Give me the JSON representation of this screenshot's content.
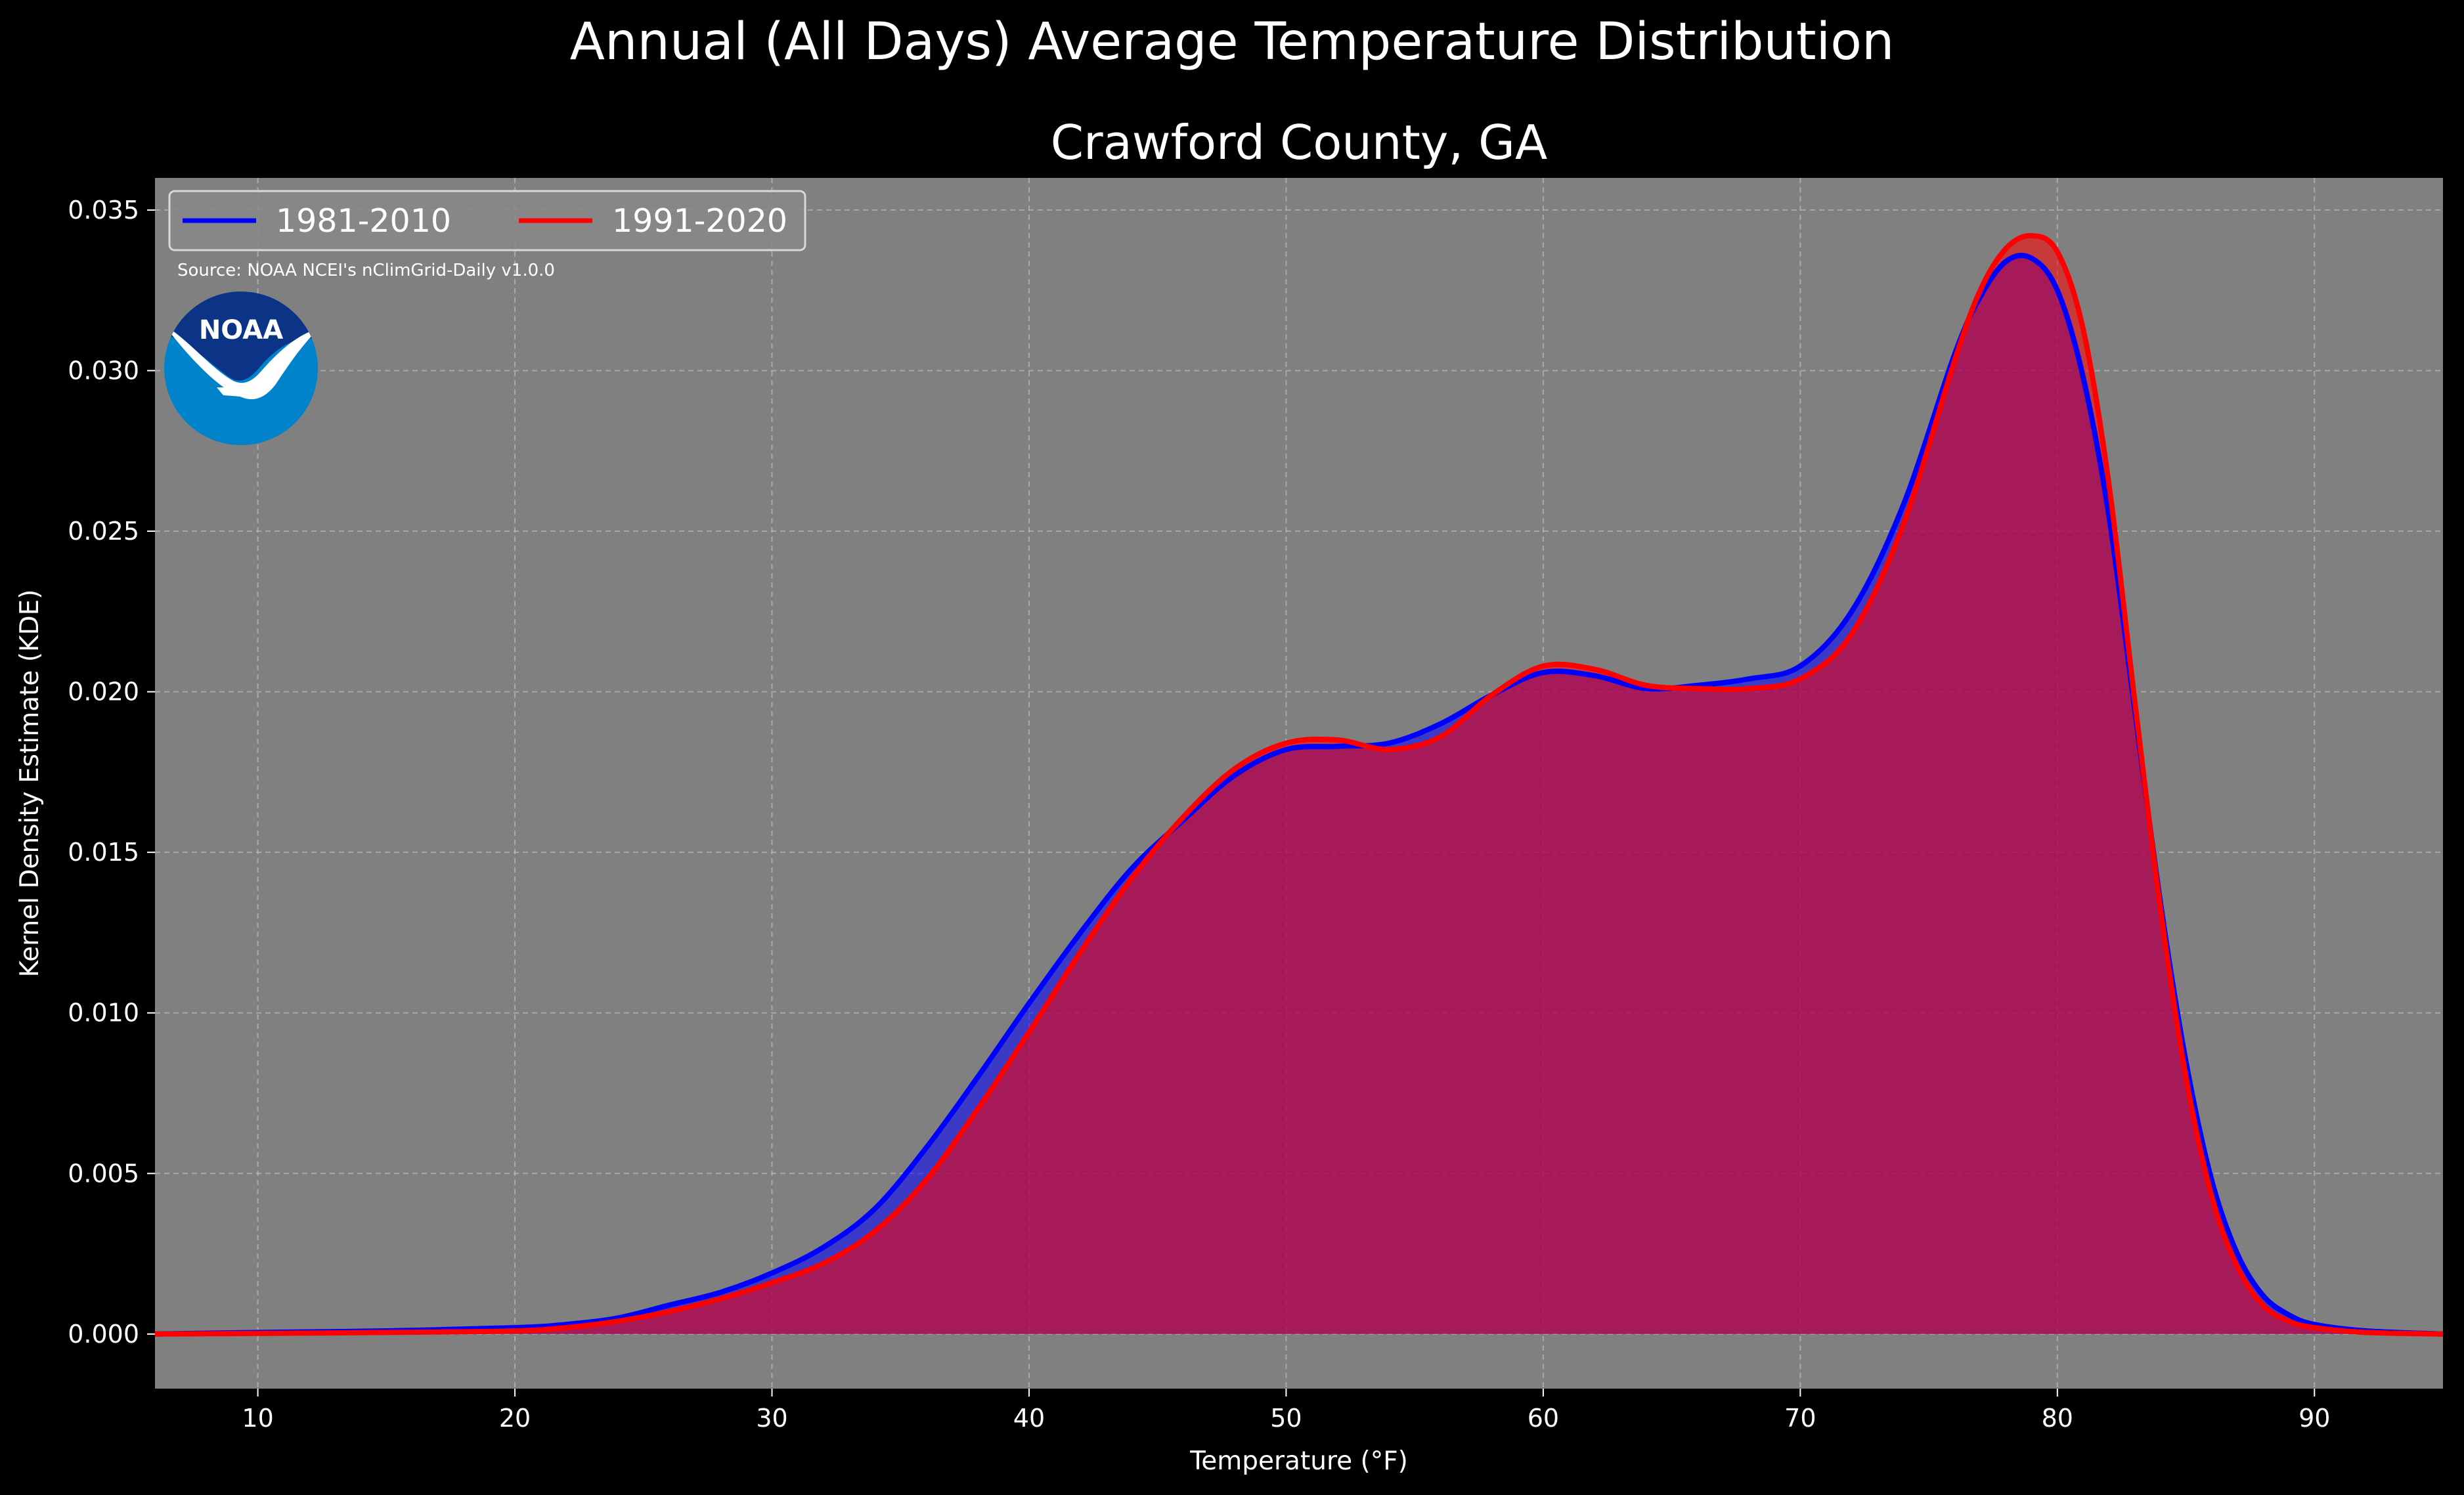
{
  "colors": {
    "background": "#000000",
    "plot_background": "#808080",
    "series_1981_2010": "#0000ff",
    "series_1991_2020": "#ff0000",
    "logo_dark_blue": "#0b3486",
    "logo_light_blue": "#0083cb"
  },
  "source_note": "Source: NOAA NCEI's nClimGrid-Daily v1.0.0",
  "logo": {
    "icon": "noaa-logo",
    "text": "NOAA"
  },
  "chart_data": {
    "type": "area",
    "title": "Annual (All Days) Average Temperature Distribution",
    "subtitle": "Crawford County, GA",
    "xlabel": "Temperature ($^\\circ$F)",
    "xlabel_display": "Temperature (°F)",
    "ylabel": "Kernel Density Estimate (KDE)",
    "xlim": [
      6,
      95
    ],
    "ylim": [
      -0.0017,
      0.036
    ],
    "x_ticks": [
      10,
      20,
      30,
      40,
      50,
      60,
      70,
      80,
      90
    ],
    "x_tick_labels": [
      "10",
      "20",
      "30",
      "40",
      "50",
      "60",
      "70",
      "80",
      "90"
    ],
    "y_ticks": [
      0.0,
      0.005,
      0.01,
      0.015,
      0.02,
      0.025,
      0.03,
      0.035
    ],
    "y_tick_labels": [
      "0.000",
      "0.005",
      "0.010",
      "0.015",
      "0.020",
      "0.025",
      "0.030",
      "0.035"
    ],
    "grid": true,
    "legend_position": "top-left",
    "x": [
      6,
      10,
      15,
      20,
      22,
      24,
      26,
      28,
      30,
      32,
      34,
      36,
      38,
      40,
      42,
      44,
      46,
      48,
      50,
      52,
      54,
      56,
      58,
      60,
      62,
      64,
      66,
      68,
      70,
      72,
      74,
      76,
      77,
      78,
      79,
      80,
      81,
      82,
      83,
      84,
      85,
      86,
      87,
      88,
      89,
      90,
      92,
      95
    ],
    "series": [
      {
        "name": "1981-2010",
        "color": "#0000ff",
        "values": [
          0.0,
          5e-05,
          0.0001,
          0.0002,
          0.0003,
          0.0005,
          0.0009,
          0.0013,
          0.0019,
          0.0027,
          0.0039,
          0.0058,
          0.008,
          0.0103,
          0.0125,
          0.0145,
          0.016,
          0.0174,
          0.0182,
          0.0183,
          0.0184,
          0.019,
          0.0199,
          0.0206,
          0.0205,
          0.0201,
          0.0202,
          0.0204,
          0.0208,
          0.0225,
          0.0258,
          0.0305,
          0.0323,
          0.0334,
          0.0335,
          0.0325,
          0.0298,
          0.0255,
          0.0195,
          0.0135,
          0.0085,
          0.0048,
          0.0025,
          0.0012,
          0.0006,
          0.0003,
          0.0001,
          0.0
        ]
      },
      {
        "name": "1991-2020",
        "color": "#ff0000",
        "values": [
          0.0,
          2e-05,
          5e-05,
          0.0001,
          0.0002,
          0.0004,
          0.0007,
          0.0011,
          0.0016,
          0.0022,
          0.0032,
          0.0048,
          0.007,
          0.0094,
          0.0119,
          0.0142,
          0.0161,
          0.0176,
          0.0184,
          0.0185,
          0.0182,
          0.0186,
          0.0199,
          0.0208,
          0.0207,
          0.0202,
          0.0201,
          0.0201,
          0.0204,
          0.0218,
          0.0252,
          0.0303,
          0.0325,
          0.0338,
          0.0342,
          0.0337,
          0.0313,
          0.0265,
          0.0198,
          0.0133,
          0.008,
          0.0043,
          0.0021,
          0.0009,
          0.0004,
          0.0002,
          5e-05,
          0.0
        ]
      }
    ]
  }
}
